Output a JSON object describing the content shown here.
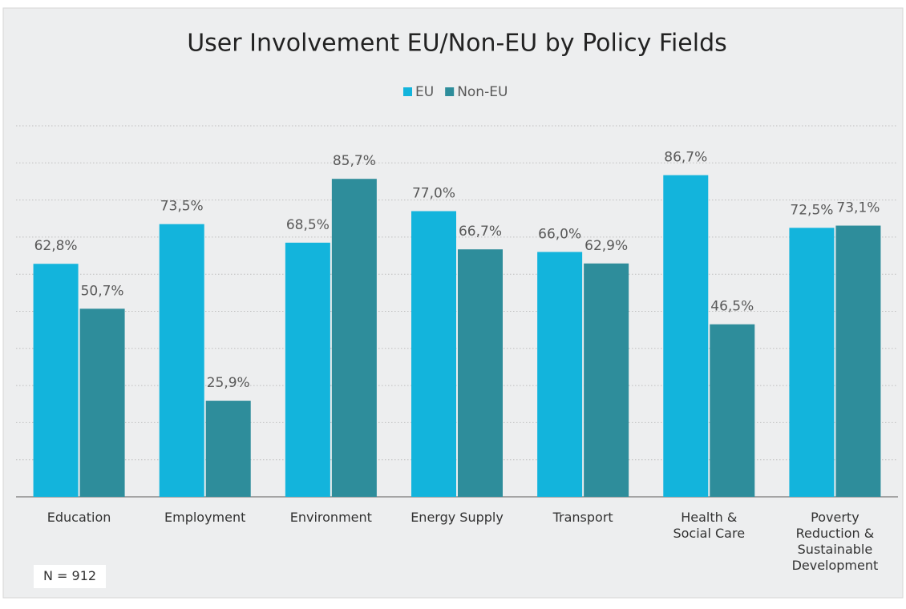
{
  "chart_data": {
    "type": "bar",
    "title": "User Involvement EU/Non-EU by Policy Fields",
    "categories": [
      "Education",
      "Employment",
      "Environment",
      "Energy Supply",
      "Transport",
      "Health & Social Care",
      "Poverty Reduction & Sustainable Development"
    ],
    "series": [
      {
        "name": "EU",
        "color": "#13b4dc",
        "values": [
          62.8,
          73.5,
          68.5,
          77.0,
          66.0,
          86.7,
          72.5
        ],
        "value_labels": [
          "62,8%",
          "73,5%",
          "68,5%",
          "77,0%",
          "66,0%",
          "86,7%",
          "72,5%"
        ]
      },
      {
        "name": "Non-EU",
        "color": "#2e8d9b",
        "values": [
          50.7,
          25.9,
          85.7,
          66.7,
          62.9,
          46.5,
          73.1
        ],
        "value_labels": [
          "50,7%",
          "25,9%",
          "85,7%",
          "66,7%",
          "62,9%",
          "46,5%",
          "73,1%"
        ]
      }
    ],
    "ylim": [
      0,
      100
    ],
    "yticks": [
      0,
      10,
      20,
      30,
      40,
      50,
      60,
      70,
      80,
      90,
      100
    ],
    "grid": true,
    "legend": "top",
    "annotation": "N = 912"
  }
}
